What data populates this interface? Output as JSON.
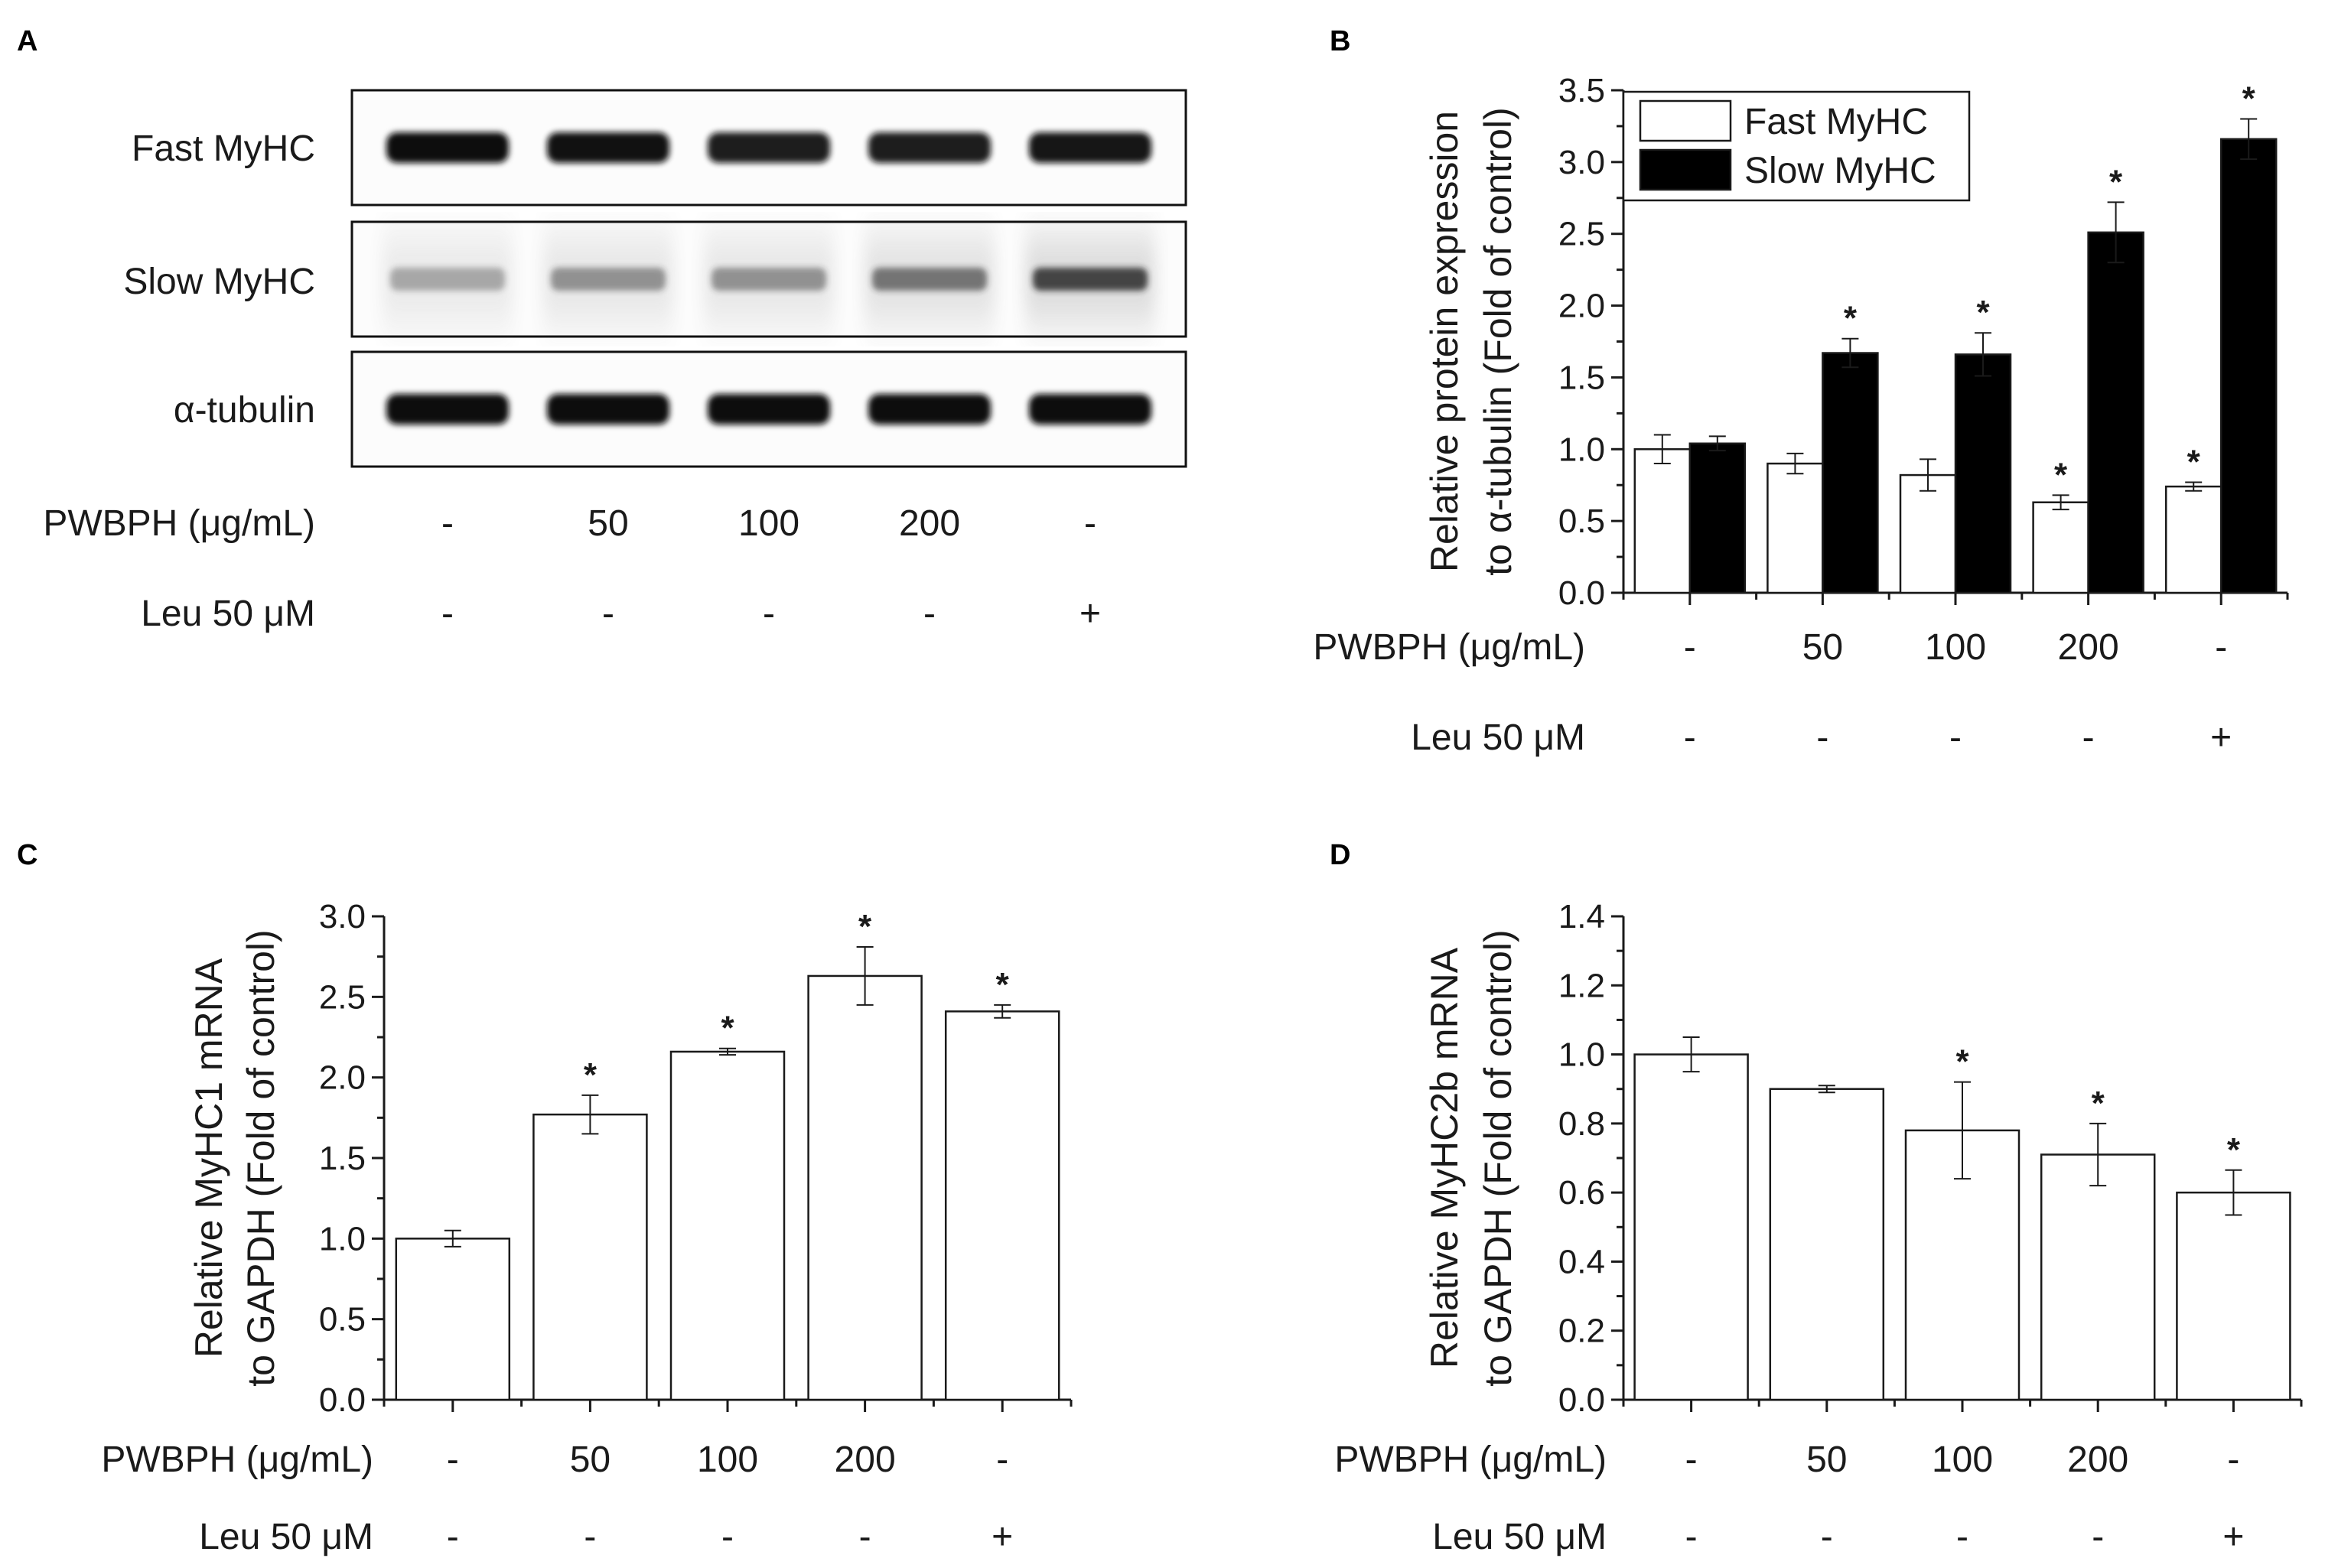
{
  "colors": {
    "fast": "#ffffff",
    "slow": "#000000",
    "ink": "#1a1a1a"
  },
  "panels": {
    "A": {
      "letter": "A",
      "bands": [
        "Fast MyHC",
        "Slow MyHC",
        "α-tubulin"
      ],
      "band_intensity": {
        "Fast MyHC": [
          1.0,
          0.95,
          0.85,
          0.85,
          0.9
        ],
        "Slow MyHC": [
          0.35,
          0.45,
          0.45,
          0.6,
          0.85
        ],
        "α-tubulin": [
          1.0,
          1.0,
          1.0,
          1.0,
          1.0
        ]
      }
    },
    "B": {
      "letter": "B"
    },
    "C": {
      "letter": "C"
    },
    "D": {
      "letter": "D"
    }
  },
  "treatments": {
    "pwbph_label": "PWBPH (μg/mL)",
    "leu_label": "Leu 50 μM",
    "pwbph": [
      "-",
      "50",
      "100",
      "200",
      "-"
    ],
    "leu": [
      "-",
      "-",
      "-",
      "-",
      "+"
    ]
  },
  "chart_data": [
    {
      "panel": "B",
      "type": "bar",
      "ylabel_line1": "Relative protein expression",
      "ylabel_line2": "to α-tubulin (Fold of control)",
      "ylim": [
        0,
        3.5
      ],
      "yticks": [
        "0.0",
        "0.5",
        "1.0",
        "1.5",
        "2.0",
        "2.5",
        "3.0",
        "3.5"
      ],
      "categories": [
        "-",
        "50",
        "100",
        "200",
        "-"
      ],
      "series": [
        {
          "name": "Fast MyHC",
          "values": [
            1.0,
            0.9,
            0.82,
            0.63,
            0.74
          ],
          "errors": [
            0.1,
            0.07,
            0.11,
            0.05,
            0.03
          ],
          "sig": [
            "",
            "",
            "",
            "*",
            "*"
          ]
        },
        {
          "name": "Slow MyHC",
          "values": [
            1.04,
            1.67,
            1.66,
            2.51,
            3.16
          ],
          "errors": [
            0.05,
            0.1,
            0.15,
            0.21,
            0.14
          ],
          "sig": [
            "",
            "*",
            "*",
            "*",
            "*"
          ]
        }
      ],
      "legend": "top-left"
    },
    {
      "panel": "C",
      "type": "bar",
      "ylabel_line1": "Relative MyHC1 mRNA",
      "ylabel_line2": "to GAPDH (Fold of control)",
      "ylim": [
        0,
        3.0
      ],
      "yticks": [
        "0.0",
        "0.5",
        "1.0",
        "1.5",
        "2.0",
        "2.5",
        "3.0"
      ],
      "categories": [
        "-",
        "50",
        "100",
        "200",
        "-"
      ],
      "series": [
        {
          "name": "MyHC1",
          "values": [
            1.0,
            1.77,
            2.16,
            2.63,
            2.41
          ],
          "errors": [
            0.05,
            0.12,
            0.02,
            0.18,
            0.04
          ],
          "sig": [
            "",
            "*",
            "*",
            "*",
            "*"
          ]
        }
      ]
    },
    {
      "panel": "D",
      "type": "bar",
      "ylabel_line1": "Relative MyHC2b mRNA",
      "ylabel_line2": "to GAPDH (Fold of control)",
      "ylim": [
        0,
        1.4
      ],
      "yticks": [
        "0.0",
        "0.2",
        "0.4",
        "0.6",
        "0.8",
        "1.0",
        "1.2",
        "1.4"
      ],
      "categories": [
        "-",
        "50",
        "100",
        "200",
        "-"
      ],
      "series": [
        {
          "name": "MyHC2b",
          "values": [
            1.0,
            0.9,
            0.78,
            0.71,
            0.6
          ],
          "errors": [
            0.05,
            0.01,
            0.14,
            0.09,
            0.065
          ],
          "sig": [
            "",
            "",
            "*",
            "*",
            "*"
          ]
        }
      ]
    }
  ]
}
